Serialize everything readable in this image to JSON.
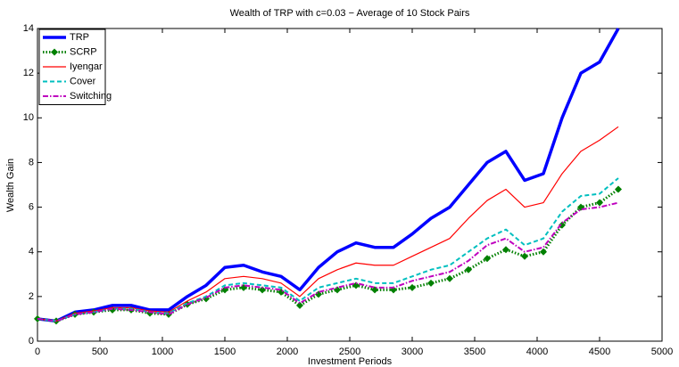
{
  "chart_data": {
    "type": "line",
    "title": "Wealth of TRP with c=0.03 − Average of 10 Stock Pairs",
    "x_label": "Investment Periods",
    "y_label": "Wealth Gain",
    "x": [
      0,
      150,
      300,
      450,
      600,
      750,
      900,
      1050,
      1200,
      1350,
      1500,
      1650,
      1800,
      1950,
      2100,
      2250,
      2400,
      2550,
      2700,
      2850,
      3000,
      3150,
      3300,
      3450,
      3600,
      3750,
      3900,
      4050,
      4200,
      4350,
      4500,
      4650
    ],
    "series": [
      {
        "name": "TRP",
        "color": "#0000ff",
        "values": [
          1.0,
          0.9,
          1.3,
          1.4,
          1.6,
          1.6,
          1.4,
          1.4,
          2.0,
          2.5,
          3.3,
          3.4,
          3.1,
          2.9,
          2.3,
          3.3,
          4.0,
          4.4,
          4.2,
          4.2,
          4.8,
          5.5,
          6.0,
          7.0,
          8.0,
          8.5,
          7.2,
          7.5,
          10.0,
          12.0,
          12.5,
          14.0
        ]
      },
      {
        "name": "SCRP",
        "color": "#008000",
        "values": [
          1.0,
          0.9,
          1.2,
          1.3,
          1.4,
          1.4,
          1.25,
          1.2,
          1.65,
          1.9,
          2.3,
          2.4,
          2.3,
          2.2,
          1.6,
          2.1,
          2.3,
          2.5,
          2.3,
          2.3,
          2.4,
          2.6,
          2.8,
          3.2,
          3.7,
          4.1,
          3.8,
          4.0,
          5.2,
          6.0,
          6.2,
          6.8
        ]
      },
      {
        "name": "Iyengar",
        "color": "#ff0000",
        "values": [
          1.0,
          0.9,
          1.25,
          1.35,
          1.5,
          1.5,
          1.35,
          1.3,
          1.8,
          2.2,
          2.8,
          2.9,
          2.8,
          2.6,
          2.0,
          2.8,
          3.2,
          3.5,
          3.4,
          3.4,
          3.8,
          4.2,
          4.6,
          5.5,
          6.3,
          6.8,
          6.0,
          6.2,
          7.5,
          8.5,
          9.0,
          9.6
        ]
      },
      {
        "name": "Cover",
        "color": "#00bfbf",
        "values": [
          1.0,
          0.9,
          1.2,
          1.3,
          1.45,
          1.45,
          1.3,
          1.25,
          1.7,
          2.0,
          2.5,
          2.6,
          2.5,
          2.4,
          1.8,
          2.4,
          2.6,
          2.8,
          2.6,
          2.6,
          2.9,
          3.2,
          3.4,
          4.0,
          4.6,
          5.0,
          4.3,
          4.6,
          5.8,
          6.5,
          6.6,
          7.3
        ]
      },
      {
        "name": "Switching",
        "color": "#bf00bf",
        "values": [
          1.0,
          0.9,
          1.2,
          1.3,
          1.45,
          1.4,
          1.3,
          1.2,
          1.65,
          1.95,
          2.4,
          2.5,
          2.4,
          2.3,
          1.7,
          2.2,
          2.4,
          2.6,
          2.4,
          2.4,
          2.7,
          2.9,
          3.1,
          3.6,
          4.3,
          4.6,
          4.0,
          4.2,
          5.3,
          5.9,
          6.0,
          6.2
        ]
      }
    ],
    "xlim": [
      0,
      5000
    ],
    "xticks": [
      0,
      500,
      1000,
      1500,
      2000,
      2500,
      3000,
      3500,
      4000,
      4500,
      5000
    ],
    "ylim": [
      0,
      14
    ],
    "yticks": [
      0,
      2,
      4,
      6,
      8,
      10,
      12,
      14
    ],
    "legend": "upper-left"
  }
}
